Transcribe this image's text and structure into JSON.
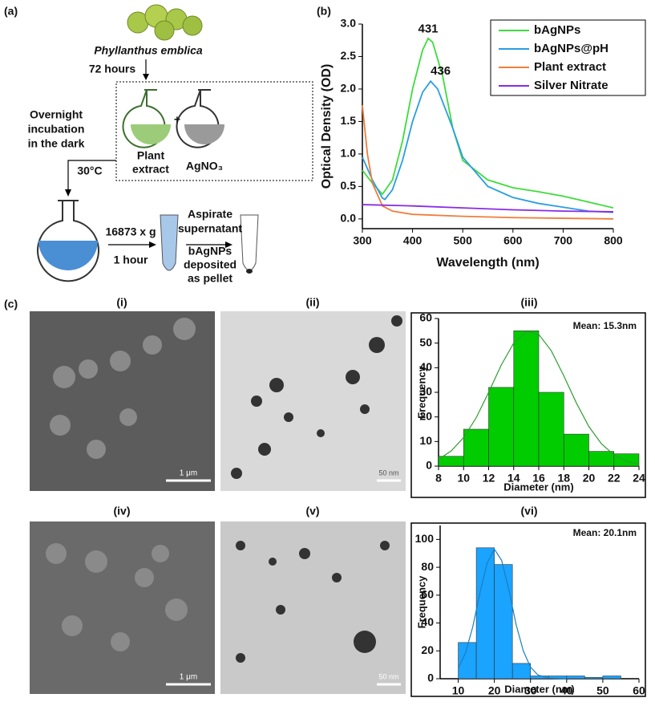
{
  "diagram": {
    "panel_label": "(a)",
    "species": "Phyllanthus emblica",
    "time": "72 hours",
    "incubation": [
      "Overnight",
      "incubation",
      "in the dark"
    ],
    "plus": "+",
    "plant_extract": [
      "Plant",
      "extract"
    ],
    "silver": "AgNO₃",
    "temperature": "30°C",
    "centrifuge": "16873 x g",
    "duration": "1 hour",
    "aspirate": [
      "Aspirate",
      "supernatant"
    ],
    "pellet": [
      "bAgNPs",
      "deposited",
      "as pellet"
    ]
  },
  "micrographs": {
    "panel_label": "(c)",
    "labels": [
      "(i)",
      "(ii)",
      "(iii)",
      "(iv)",
      "(v)",
      "(vi)"
    ],
    "scale_bars": [
      "1 μm",
      "50 nm",
      "1 μm",
      "50 nm"
    ]
  },
  "chart_data": [
    {
      "type": "line",
      "panel_label": "(b)",
      "x_label": "Wavelength (nm)",
      "y_label": "Optical Density (OD)",
      "xlim": [
        300,
        800
      ],
      "xticks": [
        300,
        400,
        500,
        600,
        700,
        800
      ],
      "ylim": [
        -0.15,
        3.0
      ],
      "yticks": [
        {
          "value": 0,
          "label": "0.0"
        },
        {
          "value": 0.5,
          "label": "0.5"
        },
        {
          "value": 1,
          "label": "1.0"
        },
        {
          "value": 1.5,
          "label": "1.5"
        },
        {
          "value": 2,
          "label": "2.0"
        },
        {
          "value": 2.5,
          "label": "2.5"
        },
        {
          "value": 3,
          "label": "3.0"
        }
      ],
      "legend": "top-right",
      "annotations": [
        {
          "text": "431",
          "x": 431,
          "y": 2.92
        },
        {
          "text": "436",
          "x": 456,
          "y": 2.27
        }
      ],
      "series": [
        {
          "name": "bAgNPs",
          "color": "#3ddc3d",
          "x": [
            300,
            320,
            340,
            360,
            380,
            400,
            420,
            431,
            440,
            460,
            480,
            500,
            550,
            600,
            650,
            700,
            750,
            800
          ],
          "values": [
            0.75,
            0.55,
            0.38,
            0.6,
            1.2,
            2.0,
            2.6,
            2.78,
            2.72,
            2.2,
            1.4,
            0.9,
            0.6,
            0.48,
            0.42,
            0.35,
            0.26,
            0.17
          ]
        },
        {
          "name": "bAgNPs@pH",
          "color": "#2a9ee0",
          "x": [
            300,
            320,
            340,
            345,
            360,
            380,
            400,
            420,
            436,
            450,
            480,
            500,
            550,
            600,
            650,
            700,
            750,
            800
          ],
          "values": [
            0.95,
            0.6,
            0.32,
            0.3,
            0.45,
            0.9,
            1.5,
            1.95,
            2.12,
            2.0,
            1.4,
            0.95,
            0.5,
            0.33,
            0.24,
            0.18,
            0.12,
            0.1
          ]
        },
        {
          "name": "Plant extract",
          "color": "#f07d3c",
          "x": [
            300,
            310,
            320,
            340,
            360,
            400,
            500,
            600,
            700,
            800
          ],
          "values": [
            1.75,
            1.0,
            0.55,
            0.2,
            0.12,
            0.07,
            0.04,
            0.02,
            0.01,
            0.0
          ]
        },
        {
          "name": "Silver Nitrate",
          "color": "#8a2be2",
          "x": [
            300,
            400,
            500,
            600,
            700,
            800
          ],
          "values": [
            0.22,
            0.2,
            0.17,
            0.14,
            0.12,
            0.11
          ]
        }
      ]
    },
    {
      "type": "histogram",
      "annotation": "Mean: 15.3nm",
      "x_label": "Diameter (nm)",
      "y_label": "Frequency",
      "color": "#00cc00",
      "fit_color": "#2e9e2e",
      "bins": [
        8,
        10,
        12,
        14,
        16,
        18,
        20,
        22,
        24
      ],
      "values": [
        4,
        15,
        32,
        55,
        30,
        13,
        6,
        5
      ],
      "fit_x": [
        8,
        9,
        10,
        11,
        12,
        13,
        14,
        15,
        16,
        17,
        18,
        19,
        20,
        21,
        22,
        23,
        24
      ],
      "fit_values": [
        2.8,
        6.1,
        11.6,
        19.6,
        30,
        41,
        50,
        54.7,
        53.5,
        46.9,
        36.7,
        25.7,
        16.1,
        9.1,
        4.6,
        2.0,
        0.8
      ],
      "xlim": [
        8,
        24
      ],
      "xticks": [
        8,
        10,
        12,
        14,
        16,
        18,
        20,
        22,
        24
      ],
      "ylim": [
        0,
        60
      ],
      "yticks": [
        0,
        10,
        20,
        30,
        40,
        50,
        60
      ]
    },
    {
      "type": "histogram",
      "annotation": "Mean: 20.1nm",
      "x_label": "Diameter (nm)",
      "y_label": "Frequency",
      "color": "#1aa3ff",
      "fit_color": "#1a7fbf",
      "bins": [
        10,
        15,
        20,
        25,
        30,
        35,
        40,
        45,
        50,
        55
      ],
      "values": [
        26,
        94,
        82,
        11,
        2,
        2,
        2,
        1,
        2
      ],
      "fit_x": [
        10,
        12,
        14,
        16,
        18,
        20,
        22,
        24,
        26,
        28,
        30,
        32,
        35,
        40
      ],
      "fit_values": [
        7.5,
        18.4,
        37,
        61.5,
        83,
        93,
        85,
        64,
        39,
        20,
        8.3,
        2.8,
        0.4,
        0
      ],
      "xlim": [
        5,
        60
      ],
      "xticks": [
        10,
        20,
        30,
        40,
        50,
        60
      ],
      "ylim": [
        0,
        110
      ],
      "yticks": [
        0,
        20,
        40,
        60,
        80,
        100
      ]
    }
  ]
}
